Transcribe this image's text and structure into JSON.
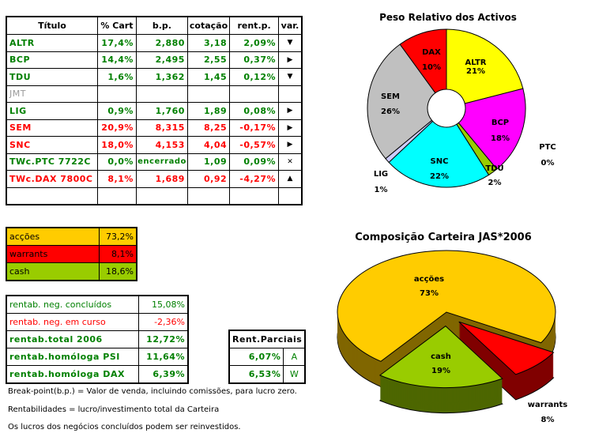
{
  "holdings_table": {
    "headers": [
      "Título",
      "% Cart",
      "b.p.",
      "cotação",
      "rent.p.",
      "var."
    ],
    "rows": [
      {
        "titulo": "ALTR",
        "cart": "17,4%",
        "bp": "2,880",
        "cotacao": "3,18",
        "rent": "2,09%",
        "var": "▼",
        "color": "green"
      },
      {
        "titulo": "BCP",
        "cart": "14,4%",
        "bp": "2,495",
        "cotacao": "2,55",
        "rent": "0,37%",
        "var": "▶",
        "color": "green"
      },
      {
        "titulo": "TDU",
        "cart": "1,6%",
        "bp": "1,362",
        "cotacao": "1,45",
        "rent": "0,12%",
        "var": "▼",
        "color": "green"
      },
      {
        "titulo": "JMT",
        "cart": "",
        "bp": "",
        "cotacao": "",
        "rent": "",
        "var": "",
        "color": "gray"
      },
      {
        "titulo": "LIG",
        "cart": "0,9%",
        "bp": "1,760",
        "cotacao": "1,89",
        "rent": "0,08%",
        "var": "▶",
        "color": "green"
      },
      {
        "titulo": "SEM",
        "cart": "20,9%",
        "bp": "8,315",
        "cotacao": "8,25",
        "rent": "-0,17%",
        "var": "▶",
        "color": "red"
      },
      {
        "titulo": "SNC",
        "cart": "18,0%",
        "bp": "4,153",
        "cotacao": "4,04",
        "rent": "-0,57%",
        "var": "▶",
        "color": "red"
      },
      {
        "titulo": "TWc.PTC 7722C",
        "cart": "0,0%",
        "bp": "encerrado",
        "cotacao": "1,09",
        "rent": "0,09%",
        "var": "✕",
        "color": "green"
      },
      {
        "titulo": "TWc.DAX 7800C",
        "cart": "8,1%",
        "bp": "1,689",
        "cotacao": "0,92",
        "rent": "-4,27%",
        "var": "▲",
        "color": "red"
      },
      {
        "titulo": "",
        "cart": "",
        "bp": "",
        "cotacao": "",
        "rent": "",
        "var": "",
        "color": "green"
      }
    ]
  },
  "allocation": [
    {
      "label": "acções",
      "value": "73,2%",
      "color": "#ffcc00"
    },
    {
      "label": "warrants",
      "value": "8,1%",
      "color": "#ff0000"
    },
    {
      "label": "cash",
      "value": "18,6%",
      "color": "#99cc00"
    }
  ],
  "returns": [
    {
      "label": "rentab. neg. concluídos",
      "value": "15,08%",
      "color": "green",
      "bold": false
    },
    {
      "label": "rentab. neg. em curso",
      "value": "-2,36%",
      "color": "red",
      "bold": false
    },
    {
      "label": "rentab.total 2006",
      "value": "12,72%",
      "color": "green",
      "bold": true
    },
    {
      "label": "rentab.homóloga PSI",
      "value": "11,64%",
      "color": "green",
      "bold": true
    },
    {
      "label": "rentab.homóloga DAX",
      "value": "6,39%",
      "color": "green",
      "bold": true
    }
  ],
  "partials": {
    "header": "Rent.Parciais",
    "rows": [
      {
        "value": "6,07%",
        "code": "A"
      },
      {
        "value": "6,53%",
        "code": "W"
      }
    ]
  },
  "notes": [
    "Break-point(b.p.) = Valor de venda, incluindo comissões, para lucro zero.",
    "Rentabilidades = lucro/investimento total da Carteira",
    "Os lucros dos negócios concluídos podem ser reinvestidos."
  ],
  "chart_data": [
    {
      "type": "pie",
      "variant": "doughnut",
      "title": "Peso Relativo dos Activos",
      "categories": [
        "ALTR",
        "BCP",
        "TDU",
        "PTC",
        "SNC",
        "LIG",
        "SEM",
        "DAX"
      ],
      "values": [
        21,
        18,
        2,
        0,
        22,
        1,
        26,
        10
      ],
      "labels": [
        "21%",
        "18%",
        "2%",
        "0%",
        "22%",
        "1%",
        "26%",
        "10%"
      ],
      "colors": [
        "#ffff00",
        "#ff00ff",
        "#99cc00",
        "#000080",
        "#00ffff",
        "#ccccff",
        "#c0c0c0",
        "#ff0000"
      ]
    },
    {
      "type": "pie",
      "variant": "3d-exploded",
      "title": "Composição Carteira JAS*2006",
      "categories": [
        "acções",
        "warrants",
        "cash"
      ],
      "values": [
        73,
        8,
        19
      ],
      "labels": [
        "73%",
        "8%",
        "19%"
      ],
      "colors": [
        "#ffcc00",
        "#ff0000",
        "#99cc00"
      ],
      "side_colors": [
        "#806600",
        "#800000",
        "#4d6600"
      ]
    }
  ]
}
